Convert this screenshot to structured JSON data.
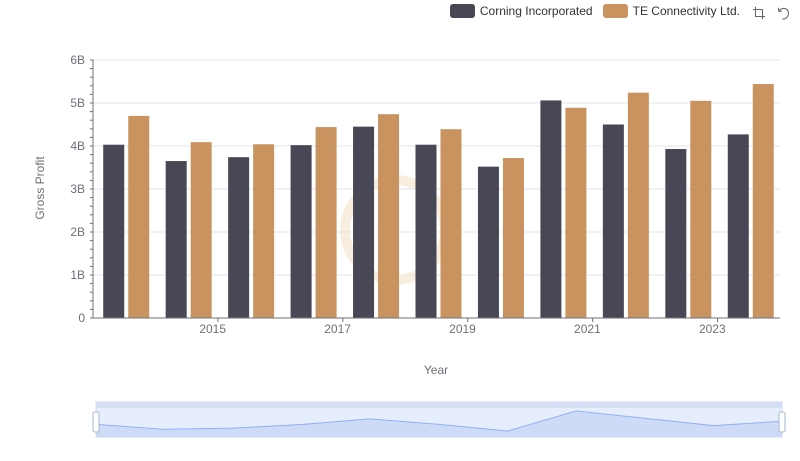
{
  "colors": {
    "corning": "#484755",
    "te": "#c8935f",
    "axis": "#6e7079",
    "grid": "#e0e6f1",
    "zoom_fill": "#c7d6f5",
    "zoom_line": "#8fb0f7"
  },
  "legend": [
    {
      "label": "Corning Incorporated",
      "color": "#484755"
    },
    {
      "label": "TE Connectivity Ltd.",
      "color": "#c8935f"
    }
  ],
  "toolbox": {
    "zoom_icon": "zoom-icon",
    "restore_icon": "restore-icon"
  },
  "chart_data": {
    "type": "bar",
    "xlabel": "Year",
    "ylabel": "Gross Profit",
    "ylim": [
      0,
      6000000000
    ],
    "y_ticks": [
      "0",
      "1B",
      "2B",
      "3B",
      "4B",
      "5B",
      "6B"
    ],
    "x_ticks": [
      "2015",
      "2017",
      "2019",
      "2021",
      "2023"
    ],
    "categories": [
      "2014",
      "2015",
      "2016",
      "2017",
      "2018",
      "2019",
      "2020",
      "2021",
      "2022",
      "2023",
      "2024"
    ],
    "series": [
      {
        "name": "Corning Incorporated",
        "values": [
          4030000000,
          3650000000,
          3740000000,
          4020000000,
          4450000000,
          4030000000,
          3520000000,
          5060000000,
          4500000000,
          3930000000,
          4270000000
        ]
      },
      {
        "name": "TE Connectivity Ltd.",
        "values": [
          4700000000,
          4090000000,
          4040000000,
          4440000000,
          4740000000,
          4390000000,
          3720000000,
          4890000000,
          5240000000,
          5050000000,
          5440000000
        ]
      }
    ],
    "grid": true,
    "legend_position": "top-right",
    "data_zoom": true
  }
}
